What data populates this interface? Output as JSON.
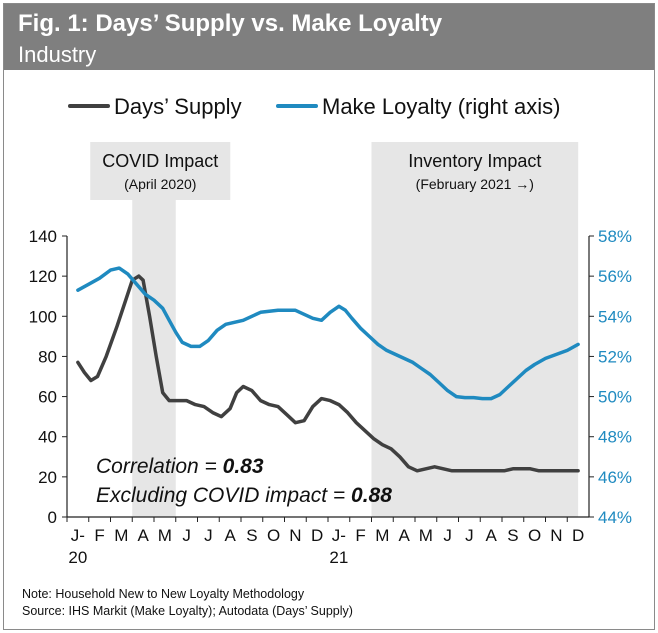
{
  "header": {
    "title": "Fig. 1: Days’ Supply vs. Make Loyalty",
    "subtitle": "Industry"
  },
  "legend": {
    "days_supply": "Days’ Supply",
    "make_loyalty": "Make Loyalty (right axis)"
  },
  "shading": [
    {
      "title": "COVID Impact",
      "subtitle": "(April 2020)",
      "from_month": 2.5,
      "to_month": 4.5
    },
    {
      "title": "Inventory Impact",
      "subtitle": "(February 2021 →)",
      "from_month": 13.5,
      "to_month": 23
    }
  ],
  "annotation": {
    "line1_prefix": "Correlation = ",
    "line1_value": "0.83",
    "line2_prefix": "Excluding COVID impact = ",
    "line2_value": "0.88"
  },
  "notes": {
    "note": "Note: Household New to New Loyalty Methodology",
    "source": "Source: IHS Markit (Make Loyalty); Autodata (Days’ Supply)"
  },
  "colors": {
    "days_supply": "#404040",
    "make_loyalty": "#1f8ac0",
    "shade": "#e6e6e6",
    "header": "#7f7f7f",
    "right_axis_text": "#1f8ac0"
  },
  "chart_data": {
    "type": "line",
    "x_tick_labels": [
      "J-",
      "F",
      "M",
      "A",
      "M",
      "J",
      "J",
      "A",
      "S",
      "O",
      "N",
      "D",
      "J-",
      "F",
      "M",
      "A",
      "M",
      "J",
      "J",
      "A",
      "S",
      "O",
      "N",
      "D"
    ],
    "x_year_labels": [
      {
        "month": 0,
        "label": "20"
      },
      {
        "month": 12,
        "label": "21"
      }
    ],
    "y_left": {
      "min": 0,
      "max": 140,
      "ticks": [
        0,
        20,
        40,
        60,
        80,
        100,
        120,
        140
      ]
    },
    "y_right": {
      "min": 44,
      "max": 58,
      "ticks": [
        "44%",
        "46%",
        "48%",
        "50%",
        "52%",
        "54%",
        "56%",
        "58%"
      ]
    },
    "series": [
      {
        "name": "Days’ Supply",
        "axis": "left",
        "points": [
          [
            0,
            77
          ],
          [
            0.3,
            72
          ],
          [
            0.6,
            68
          ],
          [
            0.9,
            70
          ],
          [
            1.3,
            80
          ],
          [
            1.8,
            95
          ],
          [
            2.2,
            108
          ],
          [
            2.5,
            118
          ],
          [
            2.8,
            120
          ],
          [
            3.0,
            118
          ],
          [
            3.3,
            100
          ],
          [
            3.6,
            80
          ],
          [
            3.9,
            62
          ],
          [
            4.2,
            58
          ],
          [
            4.6,
            58
          ],
          [
            5.0,
            58
          ],
          [
            5.4,
            56
          ],
          [
            5.8,
            55
          ],
          [
            6.2,
            52
          ],
          [
            6.6,
            50
          ],
          [
            7.0,
            54
          ],
          [
            7.3,
            62
          ],
          [
            7.6,
            65
          ],
          [
            8.0,
            63
          ],
          [
            8.4,
            58
          ],
          [
            8.8,
            56
          ],
          [
            9.2,
            55
          ],
          [
            9.6,
            51
          ],
          [
            10.0,
            47
          ],
          [
            10.4,
            48
          ],
          [
            10.8,
            55
          ],
          [
            11.2,
            59
          ],
          [
            11.6,
            58
          ],
          [
            12.0,
            56
          ],
          [
            12.4,
            52
          ],
          [
            12.8,
            47
          ],
          [
            13.2,
            43
          ],
          [
            13.6,
            39
          ],
          [
            14.0,
            36
          ],
          [
            14.4,
            34
          ],
          [
            14.8,
            30
          ],
          [
            15.2,
            25
          ],
          [
            15.6,
            23
          ],
          [
            16.0,
            24
          ],
          [
            16.4,
            25
          ],
          [
            16.8,
            24
          ],
          [
            17.2,
            23
          ],
          [
            17.6,
            23
          ],
          [
            18.0,
            23
          ],
          [
            18.4,
            23
          ],
          [
            18.8,
            23
          ],
          [
            19.2,
            23
          ],
          [
            19.6,
            23
          ],
          [
            20.0,
            24
          ],
          [
            20.4,
            24
          ],
          [
            20.8,
            24
          ],
          [
            21.2,
            23
          ],
          [
            21.6,
            23
          ],
          [
            22.0,
            23
          ],
          [
            22.5,
            23
          ],
          [
            23.0,
            23
          ]
        ]
      },
      {
        "name": "Make Loyalty (right axis)",
        "axis": "right",
        "points": [
          [
            0,
            55.3
          ],
          [
            0.5,
            55.6
          ],
          [
            1.0,
            55.9
          ],
          [
            1.5,
            56.3
          ],
          [
            1.9,
            56.4
          ],
          [
            2.3,
            56.1
          ],
          [
            2.7,
            55.6
          ],
          [
            3.1,
            55.1
          ],
          [
            3.5,
            54.8
          ],
          [
            3.9,
            54.4
          ],
          [
            4.2,
            53.8
          ],
          [
            4.5,
            53.2
          ],
          [
            4.8,
            52.7
          ],
          [
            5.2,
            52.5
          ],
          [
            5.6,
            52.5
          ],
          [
            6.0,
            52.8
          ],
          [
            6.4,
            53.3
          ],
          [
            6.8,
            53.6
          ],
          [
            7.2,
            53.7
          ],
          [
            7.6,
            53.8
          ],
          [
            8.0,
            54.0
          ],
          [
            8.4,
            54.2
          ],
          [
            8.8,
            54.25
          ],
          [
            9.2,
            54.3
          ],
          [
            9.6,
            54.3
          ],
          [
            10.0,
            54.3
          ],
          [
            10.4,
            54.1
          ],
          [
            10.8,
            53.9
          ],
          [
            11.2,
            53.8
          ],
          [
            11.6,
            54.2
          ],
          [
            12.0,
            54.5
          ],
          [
            12.3,
            54.3
          ],
          [
            12.6,
            53.9
          ],
          [
            13.0,
            53.4
          ],
          [
            13.4,
            53.0
          ],
          [
            13.8,
            52.6
          ],
          [
            14.2,
            52.3
          ],
          [
            14.6,
            52.1
          ],
          [
            15.0,
            51.9
          ],
          [
            15.4,
            51.7
          ],
          [
            15.8,
            51.4
          ],
          [
            16.2,
            51.1
          ],
          [
            16.6,
            50.7
          ],
          [
            17.0,
            50.3
          ],
          [
            17.4,
            50.0
          ],
          [
            17.8,
            49.95
          ],
          [
            18.2,
            49.95
          ],
          [
            18.6,
            49.9
          ],
          [
            19.0,
            49.9
          ],
          [
            19.4,
            50.1
          ],
          [
            19.8,
            50.5
          ],
          [
            20.2,
            50.9
          ],
          [
            20.6,
            51.3
          ],
          [
            21.0,
            51.6
          ],
          [
            21.5,
            51.9
          ],
          [
            22.0,
            52.1
          ],
          [
            22.5,
            52.3
          ],
          [
            23.0,
            52.6
          ]
        ]
      }
    ]
  }
}
